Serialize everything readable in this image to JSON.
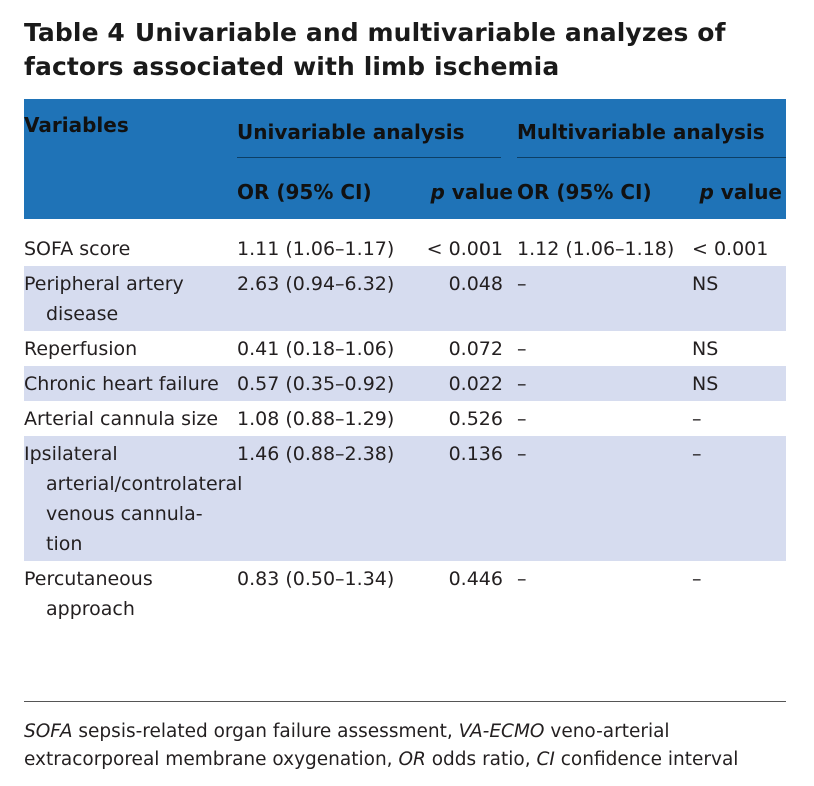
{
  "title": {
    "number": "Table 4",
    "text": "Univariable and multivariable analyzes of factors associated with limb ischemia"
  },
  "header": {
    "variables": "Variables",
    "univariable": "Univariable analysis",
    "multivariable": "Multivariable analysis",
    "or": "OR (95% CI)",
    "p_italic": "p",
    "p_rest": " value"
  },
  "rows": [
    {
      "variable": "SOFA score",
      "uni_or": "1.11 (1.06–1.17)",
      "uni_p": "< 0.001",
      "multi_or": "1.12 (1.06–1.18)",
      "multi_p": "< 0.001"
    },
    {
      "variable": "Peripheral artery disease",
      "uni_or": "2.63 (0.94–6.32)",
      "uni_p": "0.048",
      "multi_or": "–",
      "multi_p": "NS"
    },
    {
      "variable": "Reperfusion",
      "uni_or": "0.41 (0.18–1.06)",
      "uni_p": "0.072",
      "multi_or": "–",
      "multi_p": "NS"
    },
    {
      "variable": "Chronic heart failure",
      "uni_or": "0.57 (0.35–0.92)",
      "uni_p": "0.022",
      "multi_or": "–",
      "multi_p": "NS"
    },
    {
      "variable": "Arterial cannula size",
      "uni_or": "1.08 (0.88–1.29)",
      "uni_p": "0.526",
      "multi_or": "–",
      "multi_p": "–"
    },
    {
      "variable": "Ipsilateral arterial/controlateral venous cannula-tion",
      "uni_or": "1.46 (0.88–2.38)",
      "uni_p": "0.136",
      "multi_or": "–",
      "multi_p": "–"
    },
    {
      "variable": "Percutaneous approach",
      "uni_or": "0.83 (0.50–1.34)",
      "uni_p": "0.446",
      "multi_or": "–",
      "multi_p": "–"
    }
  ],
  "footnote": {
    "t1": "SOFA",
    "d1": " sepsis-related organ failure assessment, ",
    "t2": "VA-ECMO",
    "d2": " veno-arterial extracorporeal membrane oxygenation, ",
    "t3": "OR",
    "d3": " odds ratio, ",
    "t4": "CI",
    "d4": " confidence interval"
  }
}
